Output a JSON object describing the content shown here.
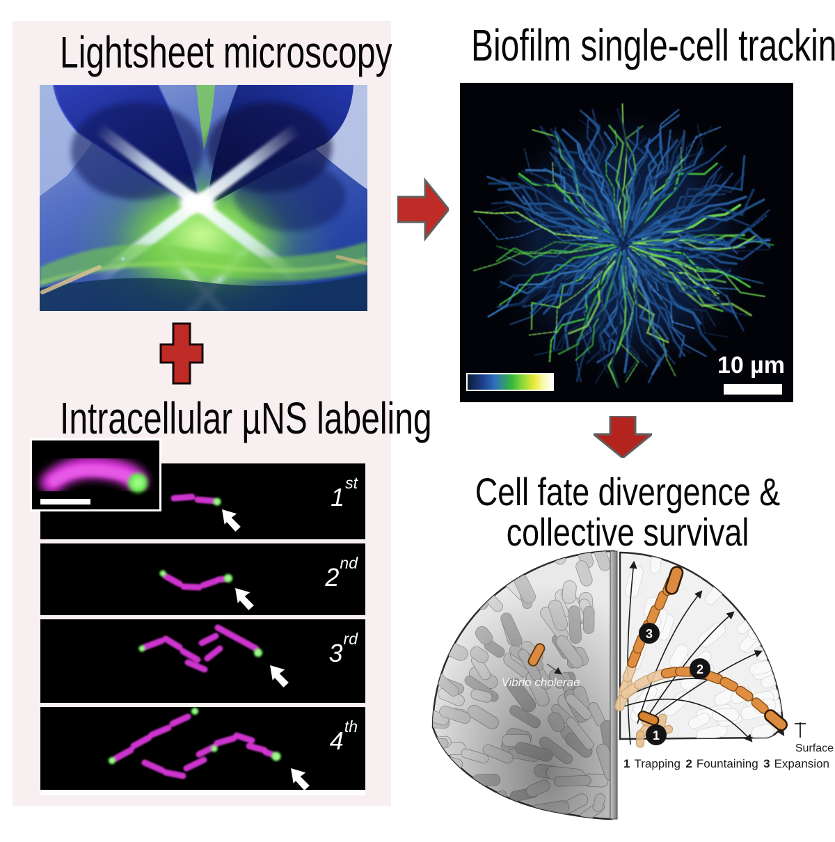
{
  "panel_lightsheet": {
    "title": "Lightsheet microscopy"
  },
  "panel_labeling": {
    "title": "Intracellular µNS labeling",
    "divisions": [
      {
        "number": "1",
        "suffix": "st"
      },
      {
        "number": "2",
        "suffix": "nd"
      },
      {
        "number": "3",
        "suffix": "rd"
      },
      {
        "number": "4",
        "suffix": "th"
      }
    ]
  },
  "panel_tracking": {
    "title": "Biofilm single-cell tracking",
    "scale_label": "10 µm",
    "colorbar_gradient": [
      "#0b1d36",
      "#1d3f8c",
      "#2e6fc0",
      "#35b83a",
      "#c8e83c",
      "#f5f047",
      "#ffffff"
    ]
  },
  "panel_outcome": {
    "title_line1": "Cell fate divergence &",
    "title_line2": "collective survival",
    "species_label": "Vibrio cholerae",
    "surface_label": "Surface",
    "markers": [
      "1",
      "2",
      "3"
    ],
    "legend": [
      {
        "number": "1",
        "label": "Trapping"
      },
      {
        "number": "2",
        "label": "Fountaining"
      },
      {
        "number": "3",
        "label": "Expansion"
      }
    ]
  },
  "icons": {
    "plus": "plus-icon",
    "arrow_right": "arrow-right-icon",
    "arrow_down": "arrow-down-icon"
  },
  "colors": {
    "accent_red": "#bf2b26",
    "panel_pink": "#f8eff0",
    "cell_magenta": "#d935d9",
    "label_green": "#57e743",
    "biofilm_blue": "#2a63ab",
    "biofilm_green": "#63d84e",
    "schematic_orange": "#dd8a41"
  }
}
